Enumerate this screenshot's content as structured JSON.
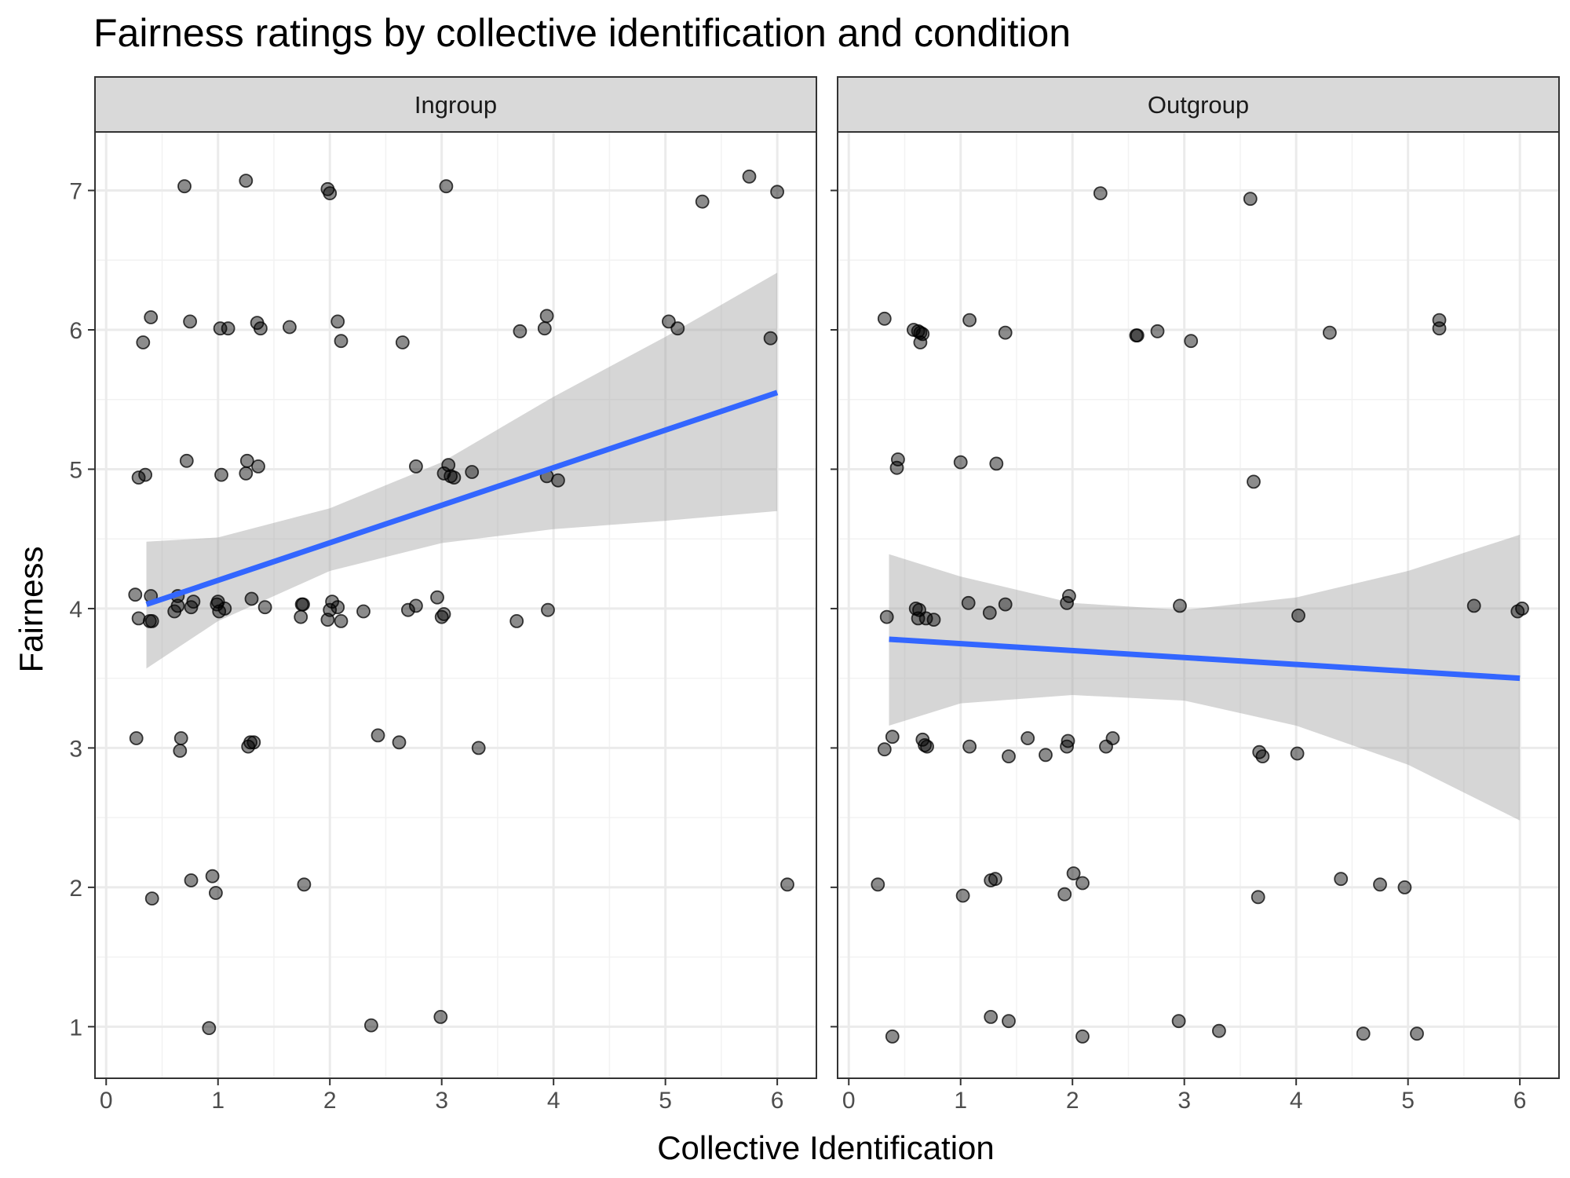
{
  "chart_data": {
    "type": "scatter",
    "title": "Fairness ratings by collective identification and condition",
    "xlabel": "Collective Identification",
    "ylabel": "Fairness",
    "xlim": [
      -0.1,
      6.35
    ],
    "ylim": [
      0.63,
      7.42
    ],
    "x_ticks": [
      0,
      1,
      2,
      3,
      4,
      5,
      6
    ],
    "y_ticks": [
      1,
      2,
      3,
      4,
      5,
      6,
      7
    ],
    "grid": true,
    "fit_color": "#3366FF",
    "ribbon_color": "#999999",
    "panels": [
      {
        "label": "Ingroup",
        "fit": {
          "x": [
            0.36,
            6.0
          ],
          "y": [
            4.03,
            5.55
          ]
        },
        "ci": {
          "x": [
            0.36,
            1.0,
            2.0,
            3.0,
            4.0,
            5.0,
            6.0
          ],
          "lower": [
            3.57,
            3.91,
            4.27,
            4.47,
            4.57,
            4.63,
            4.7
          ],
          "upper": [
            4.48,
            4.51,
            4.72,
            5.05,
            5.52,
            5.95,
            6.41
          ]
        },
        "points": [
          [
            0.7,
            7.03
          ],
          [
            1.25,
            7.07
          ],
          [
            1.98,
            7.01
          ],
          [
            2.0,
            6.98
          ],
          [
            3.04,
            7.03
          ],
          [
            5.75,
            7.1
          ],
          [
            5.33,
            6.92
          ],
          [
            6.0,
            6.99
          ],
          [
            0.4,
            6.09
          ],
          [
            0.33,
            5.91
          ],
          [
            0.75,
            6.06
          ],
          [
            1.02,
            6.01
          ],
          [
            1.09,
            6.01
          ],
          [
            1.35,
            6.05
          ],
          [
            1.38,
            6.01
          ],
          [
            1.64,
            6.02
          ],
          [
            2.07,
            6.06
          ],
          [
            2.1,
            5.92
          ],
          [
            2.65,
            5.91
          ],
          [
            3.7,
            5.99
          ],
          [
            3.92,
            6.01
          ],
          [
            3.94,
            6.1
          ],
          [
            5.03,
            6.06
          ],
          [
            5.11,
            6.01
          ],
          [
            5.94,
            5.94
          ],
          [
            0.29,
            4.94
          ],
          [
            0.35,
            4.96
          ],
          [
            0.72,
            5.06
          ],
          [
            1.03,
            4.96
          ],
          [
            1.26,
            5.06
          ],
          [
            1.25,
            4.97
          ],
          [
            1.36,
            5.02
          ],
          [
            2.77,
            5.02
          ],
          [
            3.02,
            4.97
          ],
          [
            3.06,
            5.03
          ],
          [
            3.08,
            4.95
          ],
          [
            3.11,
            4.94
          ],
          [
            3.27,
            4.98
          ],
          [
            3.94,
            4.95
          ],
          [
            4.04,
            4.92
          ],
          [
            0.26,
            4.1
          ],
          [
            0.29,
            3.93
          ],
          [
            0.39,
            3.91
          ],
          [
            0.41,
            3.91
          ],
          [
            0.4,
            4.09
          ],
          [
            0.61,
            3.98
          ],
          [
            0.64,
            4.02
          ],
          [
            0.64,
            4.09
          ],
          [
            0.76,
            4.01
          ],
          [
            0.78,
            4.05
          ],
          [
            0.99,
            4.03
          ],
          [
            1.01,
            3.98
          ],
          [
            1.0,
            4.05
          ],
          [
            1.06,
            4.0
          ],
          [
            1.3,
            4.07
          ],
          [
            1.42,
            4.01
          ],
          [
            1.74,
            3.94
          ],
          [
            1.75,
            4.03
          ],
          [
            1.76,
            4.03
          ],
          [
            1.98,
            3.92
          ],
          [
            2.0,
            3.99
          ],
          [
            2.02,
            4.05
          ],
          [
            2.07,
            4.01
          ],
          [
            2.1,
            3.91
          ],
          [
            2.3,
            3.98
          ],
          [
            2.7,
            3.99
          ],
          [
            2.77,
            4.02
          ],
          [
            2.96,
            4.08
          ],
          [
            3.0,
            3.94
          ],
          [
            3.02,
            3.96
          ],
          [
            3.67,
            3.91
          ],
          [
            3.95,
            3.99
          ],
          [
            0.27,
            3.07
          ],
          [
            0.67,
            3.07
          ],
          [
            0.66,
            2.98
          ],
          [
            1.27,
            3.01
          ],
          [
            1.29,
            3.04
          ],
          [
            1.32,
            3.04
          ],
          [
            2.43,
            3.09
          ],
          [
            2.62,
            3.04
          ],
          [
            3.33,
            3.0
          ],
          [
            0.41,
            1.92
          ],
          [
            0.76,
            2.05
          ],
          [
            0.95,
            2.08
          ],
          [
            0.98,
            1.96
          ],
          [
            1.77,
            2.02
          ],
          [
            6.09,
            2.02
          ],
          [
            0.92,
            0.99
          ],
          [
            2.37,
            1.01
          ],
          [
            2.99,
            1.07
          ]
        ]
      },
      {
        "label": "Outgroup",
        "fit": {
          "x": [
            0.36,
            6.0
          ],
          "y": [
            3.78,
            3.5
          ]
        },
        "ci": {
          "x": [
            0.36,
            1.0,
            2.0,
            3.0,
            4.0,
            5.0,
            6.0
          ],
          "lower": [
            3.16,
            3.32,
            3.38,
            3.34,
            3.16,
            2.88,
            2.48
          ],
          "upper": [
            4.39,
            4.23,
            4.04,
            3.99,
            4.08,
            4.27,
            4.53
          ]
        },
        "points": [
          [
            2.25,
            6.98
          ],
          [
            3.59,
            6.94
          ],
          [
            0.32,
            6.08
          ],
          [
            0.58,
            6.0
          ],
          [
            0.62,
            5.99
          ],
          [
            0.64,
            5.98
          ],
          [
            0.66,
            5.97
          ],
          [
            0.64,
            5.91
          ],
          [
            1.08,
            6.07
          ],
          [
            1.4,
            5.98
          ],
          [
            2.57,
            5.96
          ],
          [
            2.58,
            5.96
          ],
          [
            2.76,
            5.99
          ],
          [
            3.06,
            5.92
          ],
          [
            4.3,
            5.98
          ],
          [
            5.28,
            6.07
          ],
          [
            5.28,
            6.01
          ],
          [
            0.44,
            5.07
          ],
          [
            0.43,
            5.01
          ],
          [
            1.0,
            5.05
          ],
          [
            1.32,
            5.04
          ],
          [
            3.62,
            4.91
          ],
          [
            0.34,
            3.94
          ],
          [
            0.6,
            4.0
          ],
          [
            0.63,
            3.99
          ],
          [
            0.62,
            3.93
          ],
          [
            0.69,
            3.93
          ],
          [
            0.76,
            3.92
          ],
          [
            1.07,
            4.04
          ],
          [
            1.26,
            3.97
          ],
          [
            1.4,
            4.03
          ],
          [
            1.95,
            4.04
          ],
          [
            1.97,
            4.09
          ],
          [
            2.96,
            4.02
          ],
          [
            4.02,
            3.95
          ],
          [
            5.59,
            4.02
          ],
          [
            5.98,
            3.98
          ],
          [
            6.02,
            4.0
          ],
          [
            0.32,
            2.99
          ],
          [
            0.39,
            3.08
          ],
          [
            0.66,
            3.06
          ],
          [
            0.68,
            3.02
          ],
          [
            0.7,
            3.01
          ],
          [
            1.08,
            3.01
          ],
          [
            1.43,
            2.94
          ],
          [
            1.6,
            3.07
          ],
          [
            1.76,
            2.95
          ],
          [
            1.95,
            3.01
          ],
          [
            1.96,
            3.05
          ],
          [
            2.3,
            3.01
          ],
          [
            2.36,
            3.07
          ],
          [
            3.67,
            2.97
          ],
          [
            3.7,
            2.94
          ],
          [
            4.01,
            2.96
          ],
          [
            0.26,
            2.02
          ],
          [
            1.02,
            1.94
          ],
          [
            1.27,
            2.05
          ],
          [
            1.31,
            2.06
          ],
          [
            1.93,
            1.95
          ],
          [
            2.01,
            2.1
          ],
          [
            2.09,
            2.03
          ],
          [
            3.66,
            1.93
          ],
          [
            4.4,
            2.06
          ],
          [
            4.75,
            2.02
          ],
          [
            4.97,
            2.0
          ],
          [
            0.39,
            0.93
          ],
          [
            1.27,
            1.07
          ],
          [
            1.43,
            1.04
          ],
          [
            2.09,
            0.93
          ],
          [
            2.95,
            1.04
          ],
          [
            3.31,
            0.97
          ],
          [
            4.6,
            0.95
          ],
          [
            5.08,
            0.95
          ]
        ]
      }
    ]
  }
}
